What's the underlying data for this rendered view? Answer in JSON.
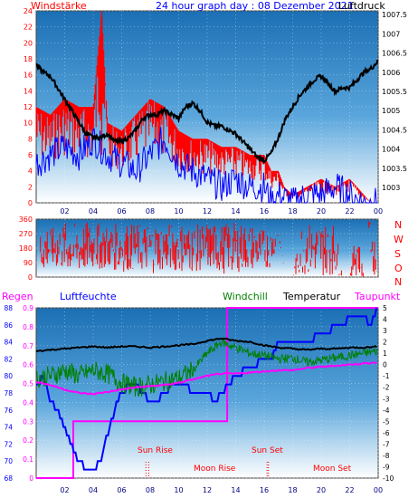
{
  "header": {
    "title": "24 hour graph day : 08 Dezember 2021",
    "left_label": "Windstärke",
    "right_label": "Luftdruck"
  },
  "bottom_labels": {
    "regen": "Regen",
    "luftfeuchte": "Luftfeuchte",
    "windchill": "Windchill",
    "temperatur": "Temperatur",
    "taupunkt": "Taupunkt"
  },
  "annotations": {
    "sun_rise": "Sun Rise",
    "sun_set": "Sun Set",
    "moon_rise": "Moon Rise",
    "moon_set": "Moon Set"
  },
  "compass_letters": [
    "N",
    "W",
    "S",
    "O",
    "N"
  ],
  "x_tick_labels": [
    "02",
    "04",
    "06",
    "08",
    "10",
    "12",
    "14",
    "16",
    "18",
    "20",
    "22",
    "00"
  ],
  "colors": {
    "panel_top": "#1c6fb4",
    "panel_bottom": "#ffffff",
    "wind_gust": "#ff0000",
    "wind_speed": "#0000ff",
    "pressure": "#000000",
    "direction": "#ff0000",
    "rain": "#ff00ff",
    "humidity": "#0000ff",
    "windchill": "#008000",
    "temperature": "#000000",
    "dewpoint": "#ff00ff"
  },
  "chart_data": [
    {
      "type": "line",
      "title": "24 hour graph day : 08 Dezember 2021",
      "x_unit": "hour",
      "xlim": [
        0,
        24
      ],
      "y_left": {
        "label": "Windstärke",
        "ticks": [
          0,
          2,
          4,
          6,
          8,
          10,
          12,
          14,
          16,
          18,
          20,
          22,
          24
        ],
        "lim": [
          0,
          24
        ]
      },
      "y_right": {
        "label": "Luftdruck",
        "ticks": [
          1003,
          1003.5,
          1004,
          1004.5,
          1005,
          1005.5,
          1006,
          1006.5,
          1007,
          1007.5
        ],
        "lim": [
          1002.6,
          1007.6
        ]
      },
      "series": [
        {
          "name": "Windstärke",
          "axis": "left",
          "color": "#ff0000",
          "x": [
            0,
            1,
            2,
            3,
            4,
            4.6,
            5,
            6,
            7,
            8,
            9,
            10,
            11,
            12,
            13,
            14,
            15,
            16,
            16.5,
            17,
            17.4,
            18,
            19,
            20,
            21,
            22,
            23,
            23.5,
            24
          ],
          "y": [
            12,
            11,
            13,
            12,
            12,
            24,
            10,
            9,
            11,
            13,
            12,
            9,
            8,
            8,
            7,
            7,
            6,
            6,
            4,
            4,
            2,
            1,
            2,
            3,
            2,
            3,
            1,
            0,
            0
          ]
        },
        {
          "name": "wind speed",
          "axis": "left",
          "color": "#0000ff",
          "x": [
            0,
            1,
            2,
            3,
            4,
            5,
            6,
            7,
            8,
            9,
            10,
            11,
            12,
            13,
            14,
            15,
            16,
            16.5,
            17,
            18,
            19,
            20,
            21,
            22,
            23,
            24
          ],
          "y": [
            5,
            6,
            7,
            6,
            8,
            6,
            5,
            4,
            6,
            8,
            5,
            4,
            3,
            2,
            3,
            2,
            2,
            0,
            1,
            0,
            1,
            1,
            2,
            1,
            0,
            0
          ]
        },
        {
          "name": "Luftdruck",
          "axis": "right",
          "color": "#000000",
          "x": [
            0,
            0.5,
            1,
            1.5,
            2,
            2.5,
            3,
            3.5,
            4,
            4.5,
            5,
            5.5,
            6,
            6.5,
            7,
            7.5,
            8,
            8.5,
            9,
            9.5,
            10,
            10.5,
            11,
            11.5,
            12,
            12.5,
            13,
            13.5,
            14,
            14.5,
            15,
            15.5,
            16,
            16.5,
            17,
            17.5,
            18,
            18.5,
            19,
            19.5,
            20,
            20.5,
            21,
            21.5,
            22,
            22.5,
            23,
            23.5,
            24
          ],
          "y": [
            1006.2,
            1006.0,
            1005.9,
            1005.6,
            1005.3,
            1005.0,
            1004.7,
            1004.4,
            1004.3,
            1004.3,
            1004.4,
            1004.2,
            1004.2,
            1004.3,
            1004.5,
            1004.8,
            1004.9,
            1004.9,
            1005.0,
            1004.9,
            1004.8,
            1005.1,
            1005.2,
            1005.0,
            1004.7,
            1004.6,
            1004.6,
            1004.5,
            1004.4,
            1004.2,
            1004.0,
            1003.8,
            1003.7,
            1003.9,
            1004.3,
            1004.8,
            1005.1,
            1005.4,
            1005.6,
            1005.8,
            1005.9,
            1005.7,
            1005.5,
            1005.6,
            1005.6,
            1005.8,
            1006.0,
            1006.1,
            1006.3
          ]
        }
      ]
    },
    {
      "type": "scatter",
      "title": "",
      "x_unit": "hour",
      "xlim": [
        0,
        24
      ],
      "y_left": {
        "label": "",
        "ticks": [
          0,
          90,
          180,
          270,
          360
        ],
        "lim": [
          0,
          360
        ]
      },
      "y_right": {
        "label": "",
        "ticks": [
          "N",
          "W",
          "S",
          "O",
          "N"
        ]
      },
      "series": [
        {
          "name": "wind direction",
          "color": "#ff0000",
          "x": [
            0,
            0.2,
            0.4,
            0.6,
            0.8,
            1,
            2,
            3,
            4,
            5,
            6,
            7,
            8,
            9,
            10,
            11,
            12,
            13,
            14,
            15,
            16,
            16.5,
            17,
            17.5,
            18,
            18.6,
            19,
            19.4,
            20,
            20.5,
            21,
            21.5,
            22,
            22.5,
            23,
            23.3,
            23.6,
            24
          ],
          "y_range_low": [
            40,
            30,
            20,
            30,
            50,
            60,
            30,
            20,
            40,
            50,
            30,
            40,
            20,
            40,
            30,
            30,
            40,
            20,
            30,
            40,
            50,
            60,
            260,
            0,
            0,
            20,
            10,
            20,
            0,
            10,
            20,
            0,
            0,
            10,
            0,
            340,
            20,
            0
          ],
          "y_range_high": [
            330,
            340,
            330,
            320,
            340,
            300,
            340,
            330,
            350,
            320,
            340,
            330,
            340,
            330,
            340,
            320,
            340,
            330,
            340,
            330,
            300,
            290,
            290,
            0,
            0,
            330,
            340,
            330,
            350,
            330,
            340,
            0,
            0,
            340,
            0,
            350,
            340,
            0
          ]
        }
      ]
    },
    {
      "type": "line",
      "title": "",
      "x_unit": "hour",
      "xlim": [
        0,
        24
      ],
      "y_regen": {
        "label": "Regen",
        "ticks": [
          0,
          0.1,
          0.2,
          0.3,
          0.4,
          0.5,
          0.6,
          0.7,
          0.8,
          0.9
        ],
        "lim": [
          0,
          0.9
        ]
      },
      "y_luftfeuchte": {
        "label": "Luftfeuchte",
        "ticks": [
          68,
          70,
          72,
          74,
          76,
          78,
          80,
          82,
          84,
          86,
          88
        ],
        "lim": [
          68,
          88
        ]
      },
      "y_temp": {
        "label": "Temperatur",
        "ticks": [
          -10,
          -9,
          -8,
          -7,
          -6,
          -5,
          -4,
          -3,
          -2,
          -1,
          0,
          1,
          2,
          3,
          4,
          5
        ],
        "lim": [
          -10,
          5
        ]
      },
      "series": [
        {
          "name": "Regen",
          "axis": "regen",
          "color": "#ff00ff",
          "x": [
            0,
            2.6,
            2.6,
            13.4,
            13.4,
            24
          ],
          "y": [
            0,
            0,
            0.3,
            0.3,
            0.9,
            0.9
          ]
        },
        {
          "name": "Luftfeuchte",
          "axis": "luftfeuchte",
          "color": "#0000ff",
          "x": [
            0,
            0.5,
            1,
            1.5,
            2,
            2.5,
            3,
            3.5,
            4,
            4.5,
            5,
            5.5,
            6,
            6.5,
            7,
            7.5,
            8,
            8.5,
            9,
            9.5,
            10,
            10.5,
            11,
            12,
            12.5,
            13,
            14,
            15,
            16,
            16.5,
            17,
            18,
            19,
            20,
            20.5,
            21,
            21.5,
            22,
            23,
            23.5,
            24
          ],
          "y": [
            79,
            80,
            77,
            76,
            74,
            72,
            70,
            69,
            69,
            70,
            73,
            76,
            78,
            79,
            79,
            78,
            77,
            77,
            78,
            79,
            79,
            79,
            78,
            78,
            77,
            78,
            80,
            81,
            82,
            82,
            84,
            84,
            84,
            85,
            85,
            86,
            86,
            87,
            87,
            86,
            88
          ]
        },
        {
          "name": "Windchill",
          "axis": "temp",
          "color": "#008000",
          "x": [
            0,
            1,
            2,
            3,
            4,
            5,
            6,
            7,
            8,
            9,
            10,
            11,
            12,
            13,
            14,
            15,
            16,
            17,
            18,
            19,
            20,
            21,
            22,
            23,
            24
          ],
          "y": [
            -1.2,
            -1.0,
            -0.5,
            -1.0,
            -0.5,
            -0.8,
            -1.6,
            -2.0,
            -1.8,
            -1.5,
            -1.2,
            -0.5,
            1.0,
            2.0,
            1.5,
            1.0,
            0.8,
            0.5,
            0.6,
            0.2,
            0.4,
            0.6,
            0.8,
            1.0,
            1.2
          ]
        },
        {
          "name": "Temperatur",
          "axis": "temp",
          "color": "#000000",
          "x": [
            0,
            1,
            2,
            3,
            4,
            5,
            6,
            7,
            8,
            9,
            10,
            11,
            12,
            13,
            14,
            15,
            16,
            17,
            18,
            19,
            20,
            21,
            22,
            23,
            24
          ],
          "y": [
            1.2,
            1.3,
            1.4,
            1.5,
            1.6,
            1.5,
            1.6,
            1.6,
            1.5,
            1.6,
            1.7,
            1.8,
            2.1,
            2.3,
            2.1,
            2.0,
            1.7,
            1.5,
            1.4,
            1.3,
            1.4,
            1.4,
            1.5,
            1.5,
            1.6
          ]
        },
        {
          "name": "Taupunkt",
          "axis": "temp",
          "color": "#ff00ff",
          "x": [
            0,
            1,
            2,
            3,
            4,
            5,
            6,
            7,
            8,
            9,
            10,
            11,
            12,
            13,
            14,
            15,
            16,
            17,
            18,
            19,
            20,
            21,
            22,
            23,
            24
          ],
          "y": [
            -1.5,
            -1.8,
            -2.2,
            -2.5,
            -2.6,
            -2.4,
            -2.2,
            -2.0,
            -1.9,
            -1.8,
            -1.6,
            -1.3,
            -1.0,
            -0.8,
            -0.8,
            -0.7,
            -0.6,
            -0.5,
            -0.5,
            -0.3,
            -0.2,
            -0.1,
            0,
            0.1,
            0.2
          ]
        }
      ],
      "markers": [
        {
          "label": "Sun Rise",
          "x": 7.7
        },
        {
          "label": "Moon Rise",
          "x": 7.9
        },
        {
          "label": "Sun Set",
          "x": 16.2
        },
        {
          "label": "Moon Set",
          "x": 16.3
        }
      ]
    }
  ]
}
